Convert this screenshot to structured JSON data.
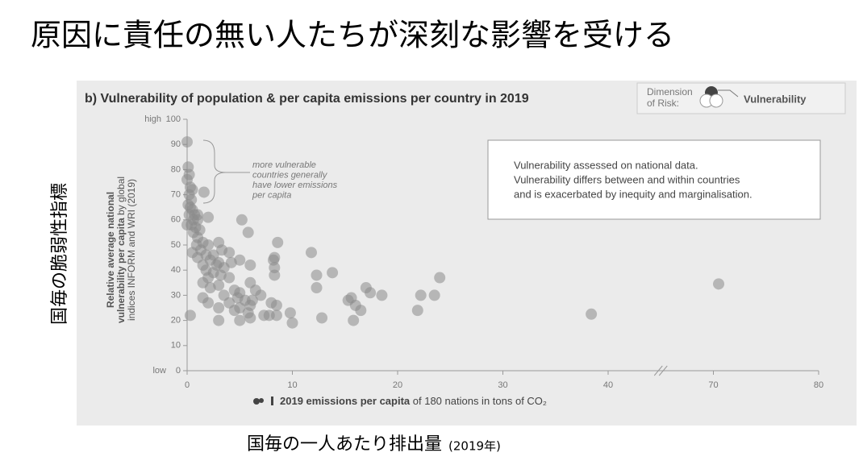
{
  "heading": "原因に責任の無い人たちが深刻な影響を受ける",
  "outer_ylabel": "国毎の脆弱性指標",
  "outer_xlabel": {
    "text": "国毎の一人あたり排出量",
    "note": "(2019年)"
  },
  "chart_data": {
    "type": "scatter",
    "title": "b) Vulnerability of population & per capita emissions per country in 2019",
    "legend_title": [
      "Dimension",
      "of Risk:"
    ],
    "xlabel": {
      "bold": "2019 emissions per capita",
      "rest": " of 180 nations in tons of CO₂"
    },
    "ylabel": [
      [
        "Relative average national",
        ""
      ],
      [
        "vulnerability per capita",
        " by global"
      ],
      [
        "",
        "indices INFORM and WRI (2019)"
      ]
    ],
    "y_end_labels": [
      "low",
      "high"
    ],
    "annotation": [
      "more vulnerable",
      "countries generally",
      "have lower emissions",
      "per capita"
    ],
    "note": [
      "Vulnerability assessed on national data.",
      "Vulnerability differs between and within countries",
      "and is exacerbated by inequity and marginalisation."
    ],
    "xlim": [
      0,
      80
    ],
    "x_break": [
      45,
      65
    ],
    "xticks": [
      0,
      10,
      20,
      30,
      40,
      70,
      80
    ],
    "ylim": [
      0,
      100
    ],
    "yticks": [
      0,
      10,
      20,
      30,
      40,
      50,
      60,
      70,
      80,
      90,
      100
    ],
    "series": [
      {
        "name": "Vulnerability",
        "color": "#8a8a8a",
        "x": [
          0,
          0.1,
          0.2,
          0,
          0.3,
          0.5,
          0.2,
          0.4,
          0.1,
          0.3,
          0.5,
          0.7,
          0.2,
          0.6,
          1,
          0.4,
          0.8,
          1.2,
          0.6,
          1,
          1.5,
          0.9,
          2,
          1.3,
          0.5,
          1.8,
          2.5,
          1,
          2.2,
          3,
          1.5,
          2.8,
          3.5,
          1.8,
          2.5,
          3.2,
          2,
          4,
          1.5,
          3,
          2.2,
          4.5,
          5,
          3.5,
          1.5,
          4.8,
          5.5,
          2,
          4,
          6,
          5,
          3,
          4.5,
          5.8,
          0.3,
          7.3,
          7.8,
          8.5,
          3,
          5,
          6,
          10,
          1.6,
          1,
          2,
          0,
          3,
          3.3,
          4,
          4.2,
          5,
          6,
          5.2,
          5.8,
          8.6,
          8.3,
          8.2,
          8.3,
          8.3,
          6,
          6.5,
          7,
          6.2,
          9.8,
          8,
          8.5,
          11.8,
          12.3,
          12.3,
          13.8,
          12.8,
          15.8,
          15.3,
          15.6,
          16,
          16.5,
          17,
          17.4,
          18.5,
          21.9,
          22.2,
          23.5,
          24,
          38.4,
          70.5
        ],
        "values": [
          91,
          81,
          78,
          76,
          73,
          72,
          70,
          68,
          66,
          65,
          64,
          62,
          62,
          60,
          60,
          58,
          57,
          56,
          55,
          53,
          51,
          50,
          50,
          48,
          47,
          46,
          46,
          45,
          44,
          43,
          42,
          42,
          41,
          40,
          39,
          38,
          37,
          37,
          35,
          34,
          33,
          32,
          31,
          30,
          29,
          29,
          28,
          27,
          27,
          26,
          25,
          25,
          24,
          23,
          22,
          22,
          22,
          22,
          20,
          20,
          21,
          19,
          71,
          62,
          61,
          58,
          51,
          48,
          47,
          43,
          44,
          42,
          60,
          55,
          51,
          45,
          44,
          41,
          38,
          35,
          32,
          30,
          28,
          23,
          27,
          26,
          47,
          38,
          33,
          39,
          21,
          20,
          28,
          29,
          26,
          24,
          33,
          31,
          30,
          24,
          30,
          30,
          37,
          22.5,
          34.5
        ]
      }
    ]
  }
}
